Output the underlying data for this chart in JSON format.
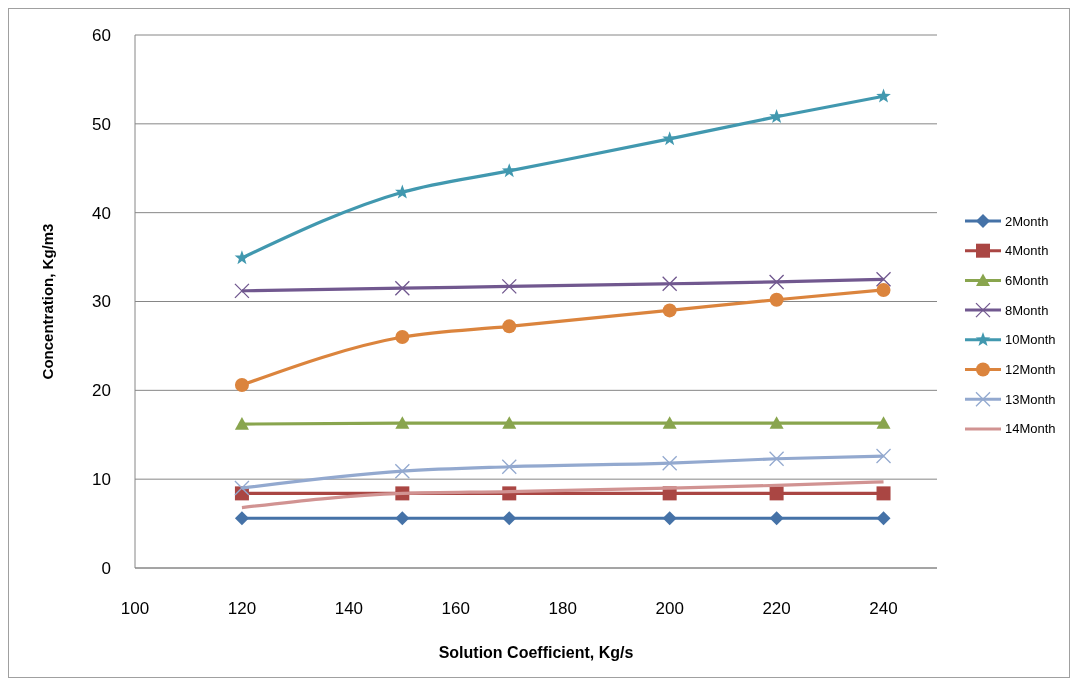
{
  "chart_data": {
    "type": "line",
    "xlabel": "Solution  Coefficient, Kg/s",
    "ylabel": "Concentration, Kg/m3",
    "x": [
      120,
      150,
      170,
      200,
      220,
      240
    ],
    "xlim": [
      100,
      250
    ],
    "xticks": [
      100,
      120,
      140,
      160,
      180,
      200,
      220,
      240
    ],
    "ylim": [
      0,
      60
    ],
    "yticks": [
      0,
      10,
      20,
      30,
      40,
      50,
      60
    ],
    "grid": "y",
    "legend": "right",
    "line_style": "solid",
    "series": [
      {
        "name": "2Month",
        "color": "#4572a7",
        "marker": "diamond",
        "values": [
          5.6,
          5.6,
          5.6,
          5.6,
          5.6,
          5.6
        ]
      },
      {
        "name": "4Month",
        "color": "#aa4643",
        "marker": "square",
        "values": [
          8.4,
          8.4,
          8.4,
          8.4,
          8.4,
          8.4
        ]
      },
      {
        "name": "6Month",
        "color": "#89a54e",
        "marker": "triangle",
        "values": [
          16.2,
          16.3,
          16.3,
          16.3,
          16.3,
          16.3
        ]
      },
      {
        "name": "8Month",
        "color": "#71588f",
        "marker": "cross",
        "values": [
          31.2,
          31.5,
          31.7,
          32.0,
          32.2,
          32.5
        ]
      },
      {
        "name": "10Month",
        "color": "#4198af",
        "marker": "star",
        "values": [
          34.9,
          42.3,
          44.7,
          48.3,
          50.8,
          53.1
        ]
      },
      {
        "name": "12Month",
        "color": "#db843d",
        "marker": "circle",
        "values": [
          20.6,
          26.0,
          27.2,
          29.0,
          30.2,
          31.3
        ]
      },
      {
        "name": "13Month",
        "color": "#93a9cf",
        "marker": "cross",
        "values": [
          9.0,
          10.9,
          11.4,
          11.8,
          12.3,
          12.6
        ]
      },
      {
        "name": "14Month",
        "color": "#d19392",
        "marker": "none",
        "values": [
          6.8,
          8.4,
          8.6,
          9.0,
          9.3,
          9.7
        ]
      }
    ]
  }
}
